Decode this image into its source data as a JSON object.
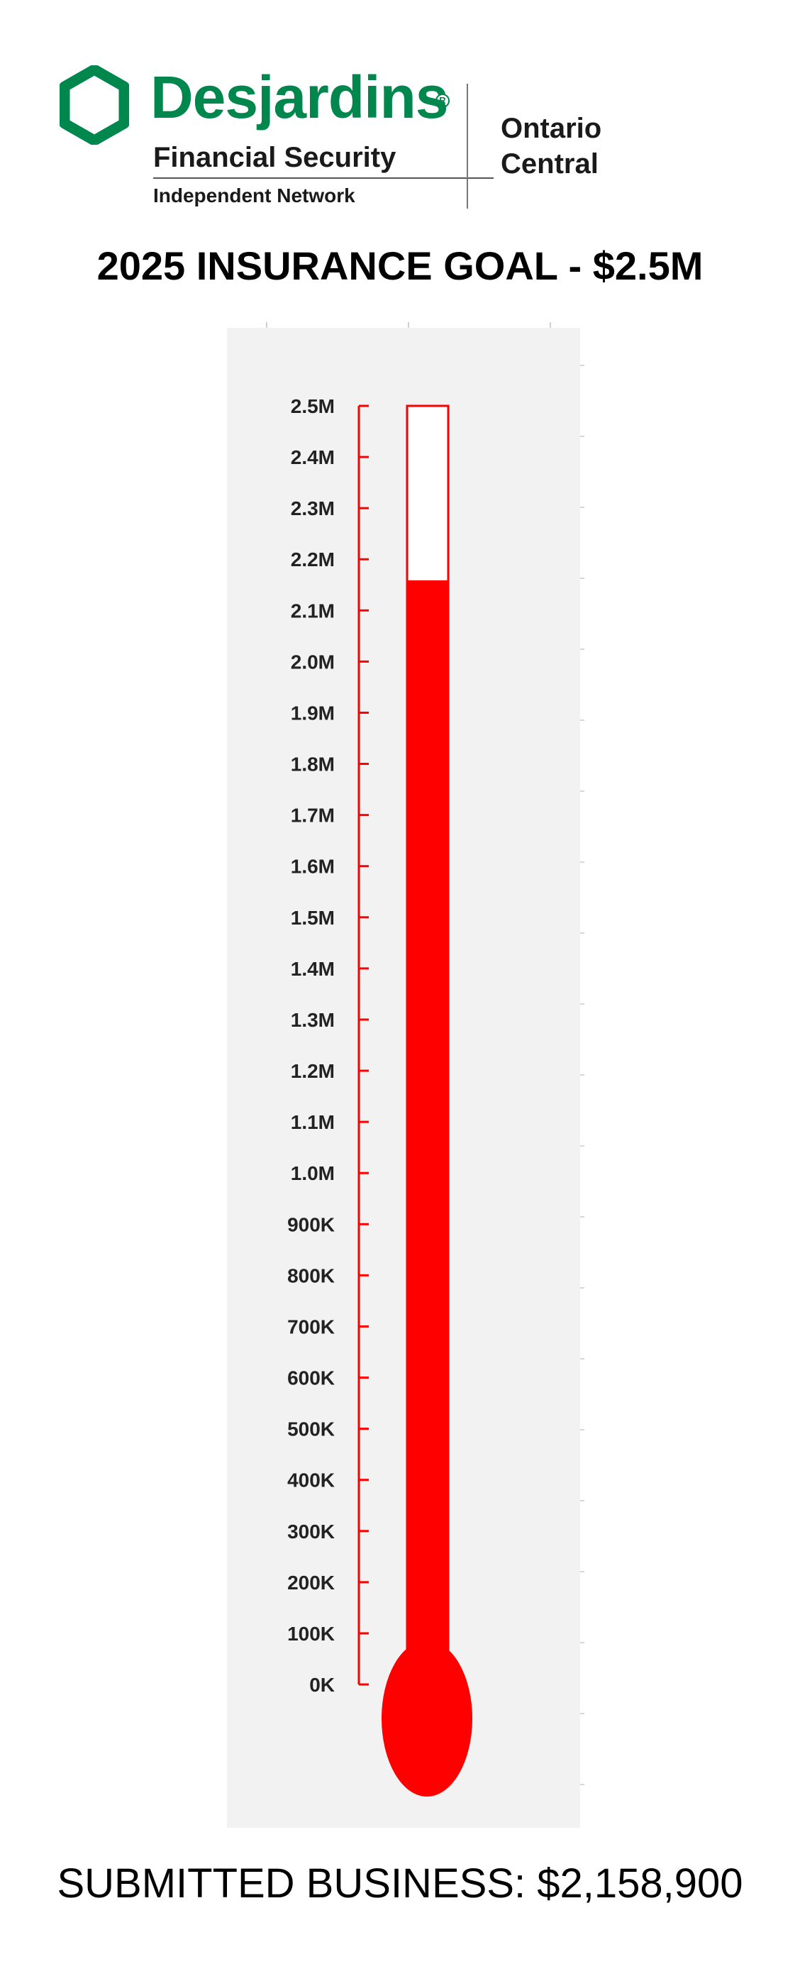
{
  "header": {
    "brand_name": "Desjardins",
    "brand_registered_mark": "R",
    "brand_subtitle": "Financial Security",
    "brand_network": "Independent Network",
    "region": "Ontario\nCentral",
    "colors": {
      "brand_green": "#00874e"
    },
    "logo_icon": "hexagon-logo-icon"
  },
  "goal_title": "2025 INSURANCE GOAL - $2.5M",
  "footer": {
    "label": "SUBMITTED BUSINESS:",
    "value": "$2,158,900"
  },
  "chart_data": {
    "type": "bar",
    "style": "thermometer",
    "title": "",
    "xlabel": "",
    "ylabel": "",
    "categories": [
      "Submitted Business"
    ],
    "values": [
      2158900
    ],
    "goal": 2500000,
    "ylim": [
      0,
      2500000
    ],
    "tick_step": 100000,
    "tick_labels": [
      "0K",
      "100K",
      "200K",
      "300K",
      "400K",
      "500K",
      "600K",
      "700K",
      "800K",
      "900K",
      "1.0M",
      "1.1M",
      "1.2M",
      "1.3M",
      "1.4M",
      "1.5M",
      "1.6M",
      "1.7M",
      "1.8M",
      "1.9M",
      "2.0M",
      "2.1M",
      "2.2M",
      "2.3M",
      "2.4M",
      "2.5M"
    ],
    "grid": false,
    "colors": {
      "fill": "#ff0000",
      "axis": "#ff0000",
      "background": "#f2f2f2"
    }
  }
}
